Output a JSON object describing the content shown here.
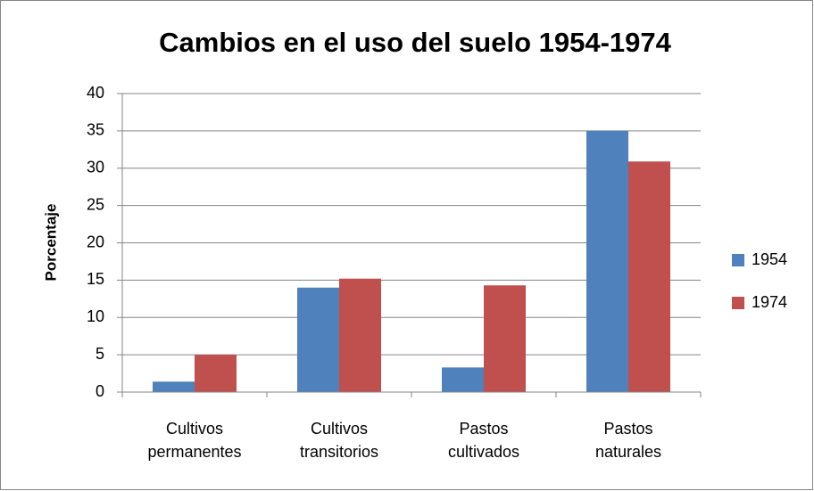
{
  "chart_data": {
    "type": "bar",
    "title": "Cambios en el uso del suelo 1954-1974",
    "y_label": "Porcentaje",
    "categories": [
      "Cultivos permanentes",
      "Cultivos transitorios",
      "Pastos cultivados",
      "Pastos naturales"
    ],
    "series": [
      {
        "name": "1954",
        "color": "#4f81bd",
        "values": [
          1.4,
          14,
          3.3,
          35
        ]
      },
      {
        "name": "1974",
        "color": "#c0504d",
        "values": [
          5,
          15.2,
          14.3,
          30.9
        ]
      }
    ],
    "ylim": [
      0,
      40
    ],
    "yticks": [
      0,
      5,
      10,
      15,
      20,
      25,
      30,
      35,
      40
    ],
    "grid": true,
    "legend": "right"
  }
}
